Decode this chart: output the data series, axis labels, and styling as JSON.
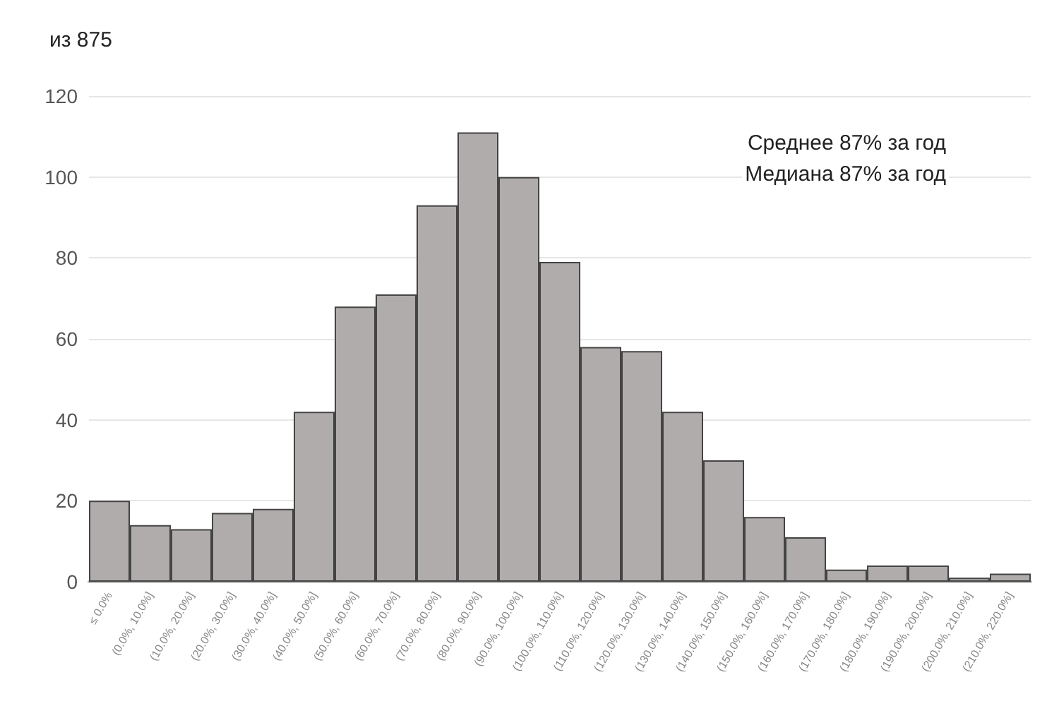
{
  "chart_data": {
    "type": "bar",
    "title": "из 875",
    "categories": [
      "≤ 0.0%",
      "(0.0%, 10.0%]",
      "(10.0%, 20.0%]",
      "(20.0%, 30.0%]",
      "(30.0%, 40.0%]",
      "(40.0%, 50.0%]",
      "(50.0%, 60.0%]",
      "(60.0%, 70.0%]",
      "(70.0%, 80.0%]",
      "(80.0%, 90.0%]",
      "(90.0%, 100.0%]",
      "(100.0%, 110.0%]",
      "(110.0%, 120.0%]",
      "(120.0%, 130.0%]",
      "(130.0%, 140.0%]",
      "(140.0%, 150.0%]",
      "(150.0%, 160.0%]",
      "(160.0%, 170.0%]",
      "(170.0%, 180.0%]",
      "(180.0%, 190.0%]",
      "(190.0%, 200.0%]",
      "(200.0%, 210.0%]",
      "(210.0%, 220.0%]"
    ],
    "values": [
      20,
      14,
      13,
      17,
      18,
      42,
      68,
      71,
      93,
      111,
      100,
      79,
      58,
      57,
      42,
      30,
      16,
      11,
      3,
      4,
      4,
      1,
      2
    ],
    "color": "#b0acab",
    "ylim": [
      0,
      120
    ],
    "yticks": [
      0,
      20,
      40,
      60,
      80,
      100,
      120
    ],
    "grid": "y",
    "annotations": [
      "Среднее 87% за год",
      "Медиана 87% за год"
    ]
  }
}
